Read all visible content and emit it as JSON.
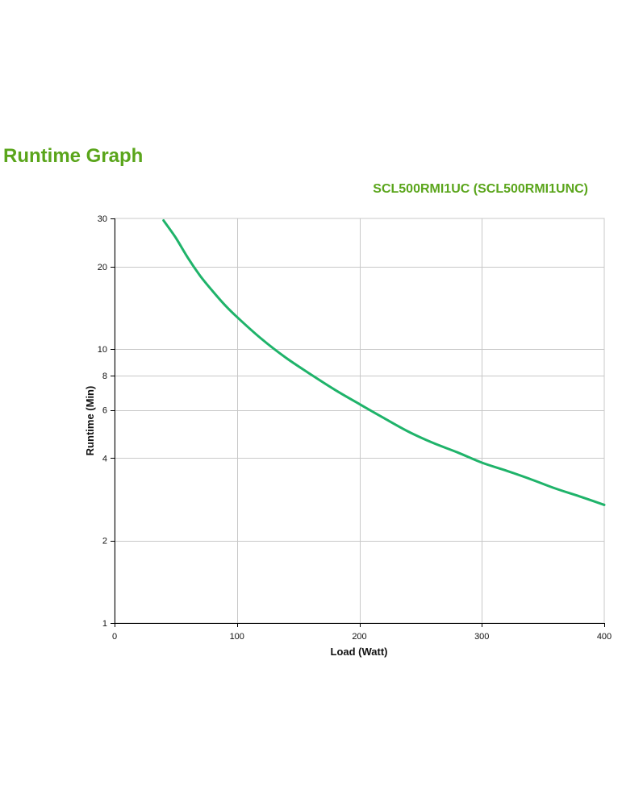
{
  "page": {
    "title": "Runtime Graph"
  },
  "chart_data": {
    "type": "line",
    "title": "SCL500RMI1UC (SCL500RMI1UNC)",
    "xlabel": "Load (Watt)",
    "ylabel": "Runtime (Min)",
    "xlim": [
      0,
      400
    ],
    "ylim": [
      1,
      30
    ],
    "yscale": "log",
    "x_ticks": [
      0,
      100,
      200,
      300,
      400
    ],
    "y_ticks": [
      1,
      2,
      4,
      6,
      8,
      10,
      20,
      30
    ],
    "grid": true,
    "legend": "none",
    "colors": {
      "title": "#5aa51b",
      "line": "#1fb36a",
      "grid": "#c8c8c8",
      "axis": "#000000"
    },
    "series": [
      {
        "x": [
          40,
          50,
          60,
          70,
          80,
          90,
          100,
          120,
          140,
          160,
          180,
          200,
          220,
          240,
          260,
          280,
          300,
          320,
          340,
          360,
          380,
          400
        ],
        "values": [
          29.5,
          25.5,
          21.5,
          18.5,
          16.3,
          14.5,
          13.1,
          10.9,
          9.3,
          8.1,
          7.1,
          6.3,
          5.6,
          5.0,
          4.55,
          4.2,
          3.85,
          3.6,
          3.35,
          3.1,
          2.9,
          2.7
        ]
      }
    ]
  }
}
